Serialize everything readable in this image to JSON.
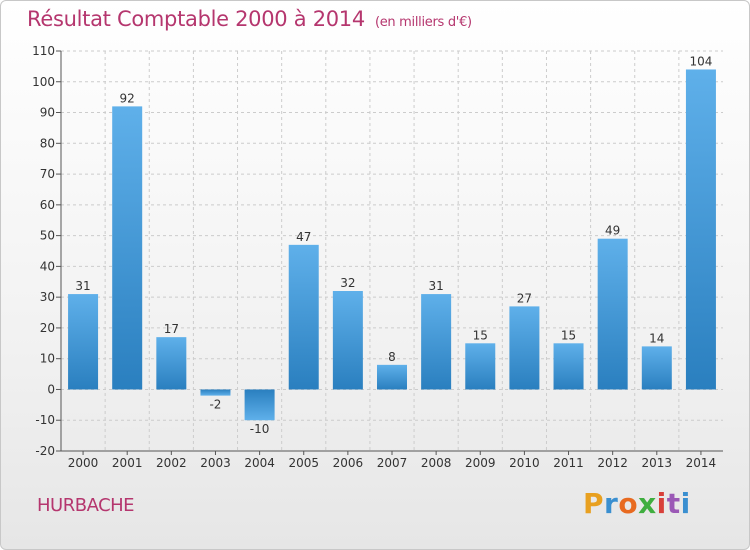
{
  "header": {
    "title": "Résultat Comptable 2000 à 2014",
    "subtitle": "(en milliers d'€)"
  },
  "footer": {
    "commune": "HURBACHE",
    "brand": "Proxiti"
  },
  "colors": {
    "title": "#b5366e",
    "bar_light": "#5fb0ea",
    "bar_dark": "#2a7fbf",
    "grid": "#cccccc"
  },
  "chart_data": {
    "type": "bar",
    "title": "Résultat Comptable 2000 à 2014",
    "subtitle": "(en milliers d'€)",
    "xlabel": "",
    "ylabel": "",
    "ylim": [
      -20,
      110
    ],
    "yticks": [
      -20,
      -10,
      0,
      10,
      20,
      30,
      40,
      50,
      60,
      70,
      80,
      90,
      100,
      110
    ],
    "grid": true,
    "categories": [
      "2000",
      "2001",
      "2002",
      "2003",
      "2004",
      "2005",
      "2006",
      "2007",
      "2008",
      "2009",
      "2010",
      "2011",
      "2012",
      "2013",
      "2014"
    ],
    "values": [
      31,
      92,
      17,
      -2,
      -10,
      47,
      32,
      8,
      31,
      15,
      27,
      15,
      49,
      14,
      104
    ]
  }
}
